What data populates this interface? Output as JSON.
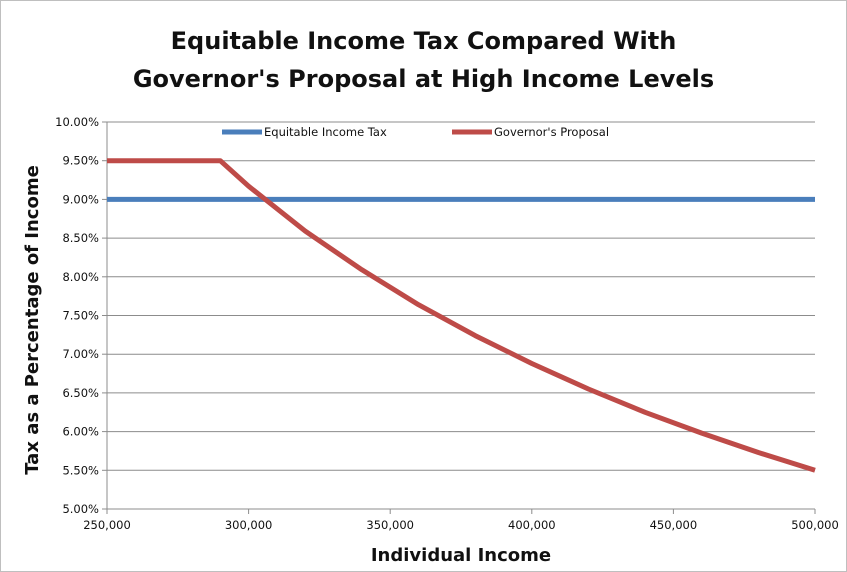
{
  "chart_data": {
    "type": "line",
    "title_lines": [
      "Equitable Income Tax Compared With",
      "Governor's Proposal at High Income Levels"
    ],
    "xlabel": "Individual Income",
    "ylabel": "Tax as a Percentage of Income",
    "xlim": [
      250000,
      500000
    ],
    "ylim": [
      5.0,
      10.0
    ],
    "x_ticks": [
      250000,
      300000,
      350000,
      400000,
      450000,
      500000
    ],
    "x_tick_labels": [
      "250,000",
      "300,000",
      "350,000",
      "400,000",
      "450,000",
      "500,000"
    ],
    "y_ticks": [
      5.0,
      5.5,
      6.0,
      6.5,
      7.0,
      7.5,
      8.0,
      8.5,
      9.0,
      9.5,
      10.0
    ],
    "y_tick_labels": [
      "5.00%",
      "5.50%",
      "6.00%",
      "6.50%",
      "7.00%",
      "7.50%",
      "8.00%",
      "8.50%",
      "9.00%",
      "9.50%",
      "10.00%"
    ],
    "grid": "horizontal",
    "legend_position": "top",
    "series": [
      {
        "name": "Equitable Income Tax",
        "color": "#4a7ebb",
        "x": [
          250000,
          500000
        ],
        "y": [
          9.0,
          9.0
        ]
      },
      {
        "name": "Governor's Proposal",
        "color": "#be4b48",
        "x": [
          250000,
          290000,
          300000,
          320000,
          340000,
          360000,
          380000,
          400000,
          420000,
          440000,
          460000,
          480000,
          500000
        ],
        "y": [
          9.5,
          9.5,
          9.17,
          8.59,
          8.09,
          7.64,
          7.24,
          6.88,
          6.55,
          6.25,
          5.98,
          5.73,
          5.5
        ]
      }
    ]
  }
}
